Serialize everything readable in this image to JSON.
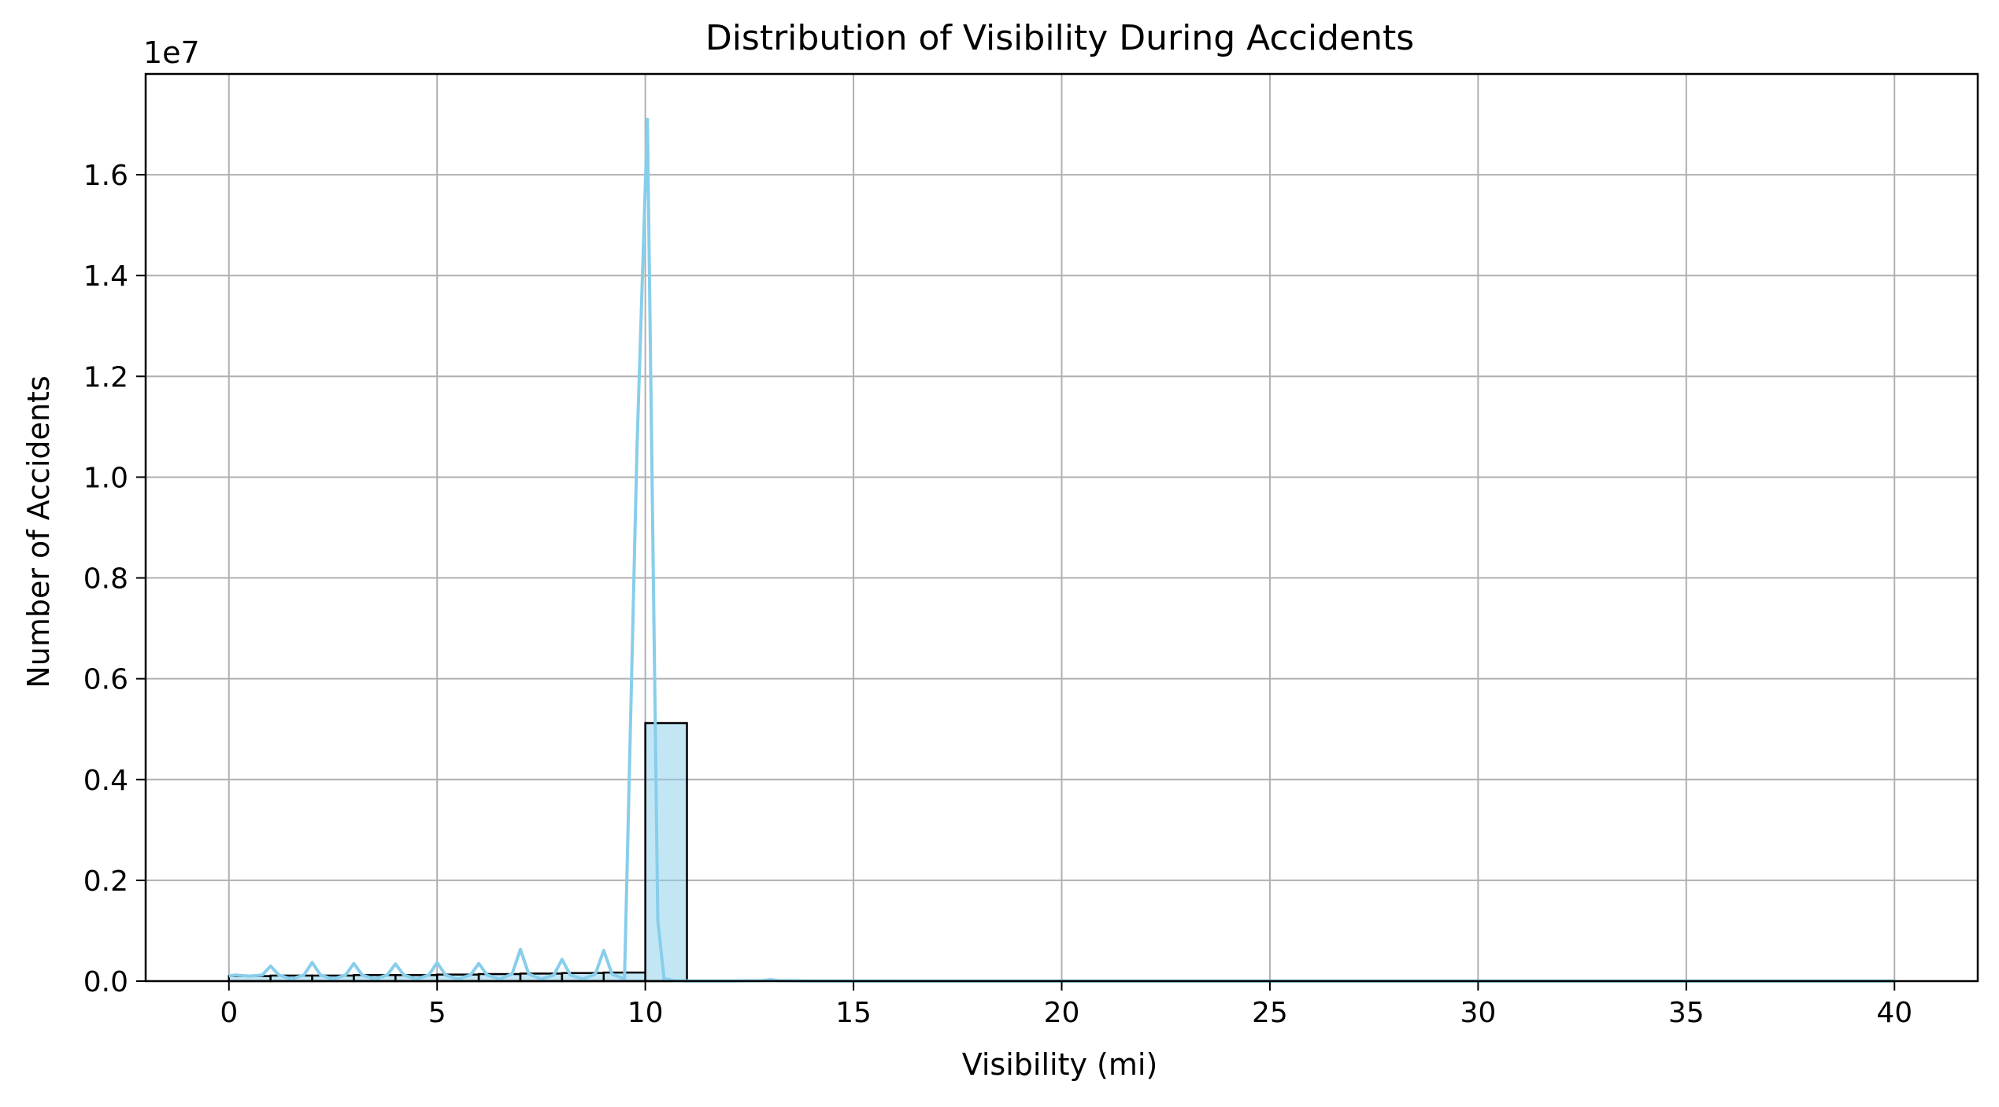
{
  "chart_data": {
    "type": "bar",
    "title": "Distribution of Visibility During Accidents",
    "xlabel": "Visibility (mi)",
    "ylabel": "Number of Accidents",
    "y_offset_text": "1e7",
    "y_scale": 10000000,
    "xlim": [
      -2,
      42
    ],
    "ylim": [
      0,
      1.8
    ],
    "x_ticks": [
      0,
      5,
      10,
      15,
      20,
      25,
      30,
      35,
      40
    ],
    "x_tick_labels": [
      "0",
      "5",
      "10",
      "15",
      "20",
      "25",
      "30",
      "35",
      "40"
    ],
    "y_ticks": [
      0.0,
      0.2,
      0.4,
      0.6,
      0.8,
      1.0,
      1.2,
      1.4,
      1.6
    ],
    "y_tick_labels": [
      "0.0",
      "0.2",
      "0.4",
      "0.6",
      "0.8",
      "1.0",
      "1.2",
      "1.4",
      "1.6"
    ],
    "grid": true,
    "colors": {
      "bar_fill": "#87ceeb",
      "bar_edge": "#000000",
      "kde_line": "#87ceeb",
      "grid": "#b0b0b0"
    },
    "histogram": {
      "bin_width": 1,
      "bins": [
        {
          "x0": 0,
          "x1": 1,
          "value": 0.01
        },
        {
          "x0": 1,
          "x1": 2,
          "value": 0.011
        },
        {
          "x0": 2,
          "x1": 3,
          "value": 0.011
        },
        {
          "x0": 3,
          "x1": 4,
          "value": 0.012
        },
        {
          "x0": 4,
          "x1": 5,
          "value": 0.012
        },
        {
          "x0": 5,
          "x1": 6,
          "value": 0.013
        },
        {
          "x0": 6,
          "x1": 7,
          "value": 0.014
        },
        {
          "x0": 7,
          "x1": 8,
          "value": 0.015
        },
        {
          "x0": 8,
          "x1": 9,
          "value": 0.016
        },
        {
          "x0": 9,
          "x1": 10,
          "value": 0.017
        },
        {
          "x0": 10,
          "x1": 11,
          "value": 0.512
        },
        {
          "x0": 11,
          "x1": 12,
          "value": 0.0
        },
        {
          "x0": 12,
          "x1": 13,
          "value": 0.001
        },
        {
          "x0": 13,
          "x1": 14,
          "value": 0.001
        },
        {
          "x0": 14,
          "x1": 15,
          "value": 0.0005
        }
      ]
    },
    "kde": {
      "x": [
        0,
        0.15,
        0.5,
        0.8,
        1.0,
        1.2,
        1.5,
        1.8,
        2.0,
        2.2,
        2.5,
        2.8,
        3.0,
        3.2,
        3.5,
        3.8,
        4.0,
        4.2,
        4.5,
        4.8,
        5.0,
        5.2,
        5.5,
        5.8,
        6.0,
        6.2,
        6.5,
        6.8,
        7.0,
        7.2,
        7.5,
        7.8,
        8.0,
        8.2,
        8.5,
        8.8,
        9.0,
        9.2,
        9.5,
        9.8,
        10.05,
        10.3,
        10.45,
        10.7,
        11.0,
        12.0,
        12.8,
        13.0,
        13.2,
        14.0,
        20.0,
        30.0,
        40.0
      ],
      "y": [
        0.01,
        0.012,
        0.01,
        0.012,
        0.03,
        0.012,
        0.004,
        0.012,
        0.037,
        0.012,
        0.004,
        0.012,
        0.035,
        0.012,
        0.004,
        0.012,
        0.034,
        0.012,
        0.004,
        0.012,
        0.037,
        0.012,
        0.004,
        0.012,
        0.035,
        0.012,
        0.004,
        0.014,
        0.063,
        0.014,
        0.004,
        0.012,
        0.043,
        0.012,
        0.004,
        0.014,
        0.061,
        0.014,
        0.004,
        1.06,
        1.71,
        0.12,
        0.005,
        0.001,
        0.0005,
        0.0005,
        0.001,
        0.003,
        0.001,
        0.0003,
        0.0001,
        0.0001,
        0.0001
      ]
    }
  }
}
